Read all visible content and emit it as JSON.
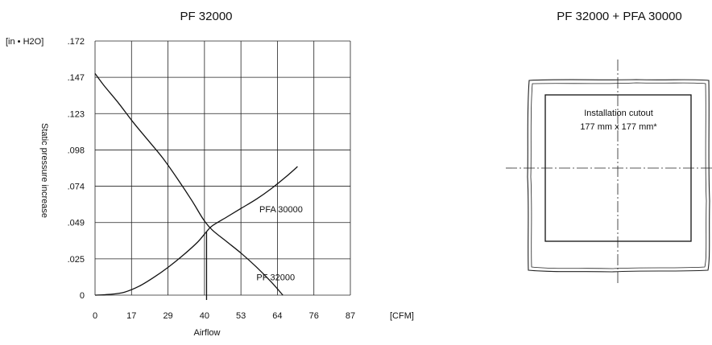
{
  "chart_data": [
    {
      "type": "line",
      "title": "PF 32000",
      "xlabel": "Airflow",
      "ylabel": "Static pressure increase",
      "x_unit": "[CFM]",
      "y_unit": "[in • H2O]",
      "xlim": [
        0,
        87
      ],
      "ylim": [
        0,
        0.172
      ],
      "x_ticks": [
        "0",
        "17",
        "29",
        "40",
        "53",
        "64",
        "76",
        "87"
      ],
      "y_ticks": [
        "0",
        ".025",
        ".049",
        ".074",
        ".098",
        ".123",
        ".147",
        ".172"
      ],
      "grid": true,
      "series": [
        {
          "name": "PF 32000",
          "x": [
            0,
            3,
            8,
            13,
            18,
            23,
            28,
            33,
            37,
            40,
            45,
            50,
            55,
            60,
            64
          ],
          "y": [
            0.15,
            0.142,
            0.13,
            0.117,
            0.105,
            0.093,
            0.079,
            0.064,
            0.051,
            0.044,
            0.036,
            0.028,
            0.019,
            0.009,
            0.0
          ]
        },
        {
          "name": "PFA 30000",
          "x": [
            0,
            5,
            10,
            15,
            20,
            25,
            30,
            35,
            38,
            40,
            45,
            50,
            55,
            60,
            65,
            69
          ],
          "y": [
            0.0,
            0.0005,
            0.002,
            0.006,
            0.012,
            0.019,
            0.027,
            0.036,
            0.043,
            0.047,
            0.053,
            0.059,
            0.065,
            0.072,
            0.08,
            0.087
          ]
        }
      ],
      "annotations": [
        {
          "text": "PFA 30000",
          "x": 56,
          "y": 0.056
        },
        {
          "text": "PF 32000",
          "x": 55,
          "y": 0.01
        }
      ],
      "operating_point": {
        "x": 38,
        "y": 0.043
      }
    },
    {
      "type": "diagram",
      "title": "PF 32000 + PFA 30000",
      "cutout_label_line1": "Installation cutout",
      "cutout_label_line2": "177 mm x 177 mm*"
    }
  ]
}
